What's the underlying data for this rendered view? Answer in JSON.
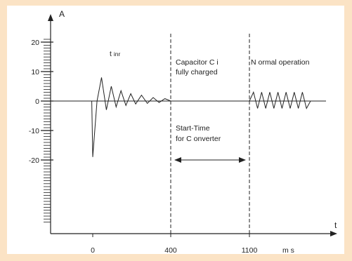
{
  "colors": {
    "frame": "#fbe3c5",
    "plot_bg": "#ffffff",
    "ink": "#222222"
  },
  "chart_data": {
    "type": "line",
    "xlabel": "t",
    "ylabel": "A",
    "x_unit_label": "m s",
    "y_ticks": [
      20,
      10,
      0,
      -10,
      -20
    ],
    "y_tick_labels": [
      "20",
      "10",
      "0",
      "-10",
      "-20"
    ],
    "x_ticks": [
      0,
      400,
      1100
    ],
    "x_tick_labels": [
      "0",
      "400",
      "1100"
    ],
    "x_tick_pattern": "piecewise",
    "ylim": [
      -50,
      25
    ],
    "grid": false,
    "series": [
      {
        "points": [
          [
            -5,
            0
          ],
          [
            0,
            -19
          ],
          [
            22,
            0
          ],
          [
            45,
            8
          ],
          [
            70,
            -3
          ],
          [
            95,
            5
          ],
          [
            120,
            -2
          ],
          [
            145,
            3.5
          ],
          [
            170,
            -1.5
          ],
          [
            195,
            2.5
          ],
          [
            220,
            -1
          ],
          [
            250,
            2
          ],
          [
            280,
            -0.8
          ],
          [
            310,
            1.2
          ],
          [
            340,
            -0.5
          ],
          [
            370,
            0.8
          ],
          [
            400,
            0
          ],
          [
            1100,
            0
          ],
          [
            1130,
            3
          ],
          [
            1160,
            -2.5
          ],
          [
            1190,
            3
          ],
          [
            1220,
            -2.5
          ],
          [
            1250,
            3
          ],
          [
            1280,
            -2.5
          ],
          [
            1310,
            3
          ],
          [
            1340,
            -2.5
          ],
          [
            1370,
            3
          ],
          [
            1400,
            -2.5
          ],
          [
            1430,
            3
          ],
          [
            1460,
            -2.5
          ],
          [
            1490,
            3
          ],
          [
            1520,
            -2.5
          ],
          [
            1550,
            0
          ]
        ]
      }
    ],
    "markers": [
      {
        "x": 400,
        "style": "dashed"
      },
      {
        "x": 1100,
        "style": "dashed"
      }
    ],
    "annotations": {
      "tinr_t": "t",
      "tinr_sub": "inr",
      "cap_line1": "Capacitor C i",
      "cap_line2": "fully charged",
      "normal": "N ormal operation",
      "start_line1": "Start-Time",
      "start_line2": "for C onverter"
    },
    "interval_arrow": {
      "from": 400,
      "to": 1100,
      "y": -20
    }
  }
}
